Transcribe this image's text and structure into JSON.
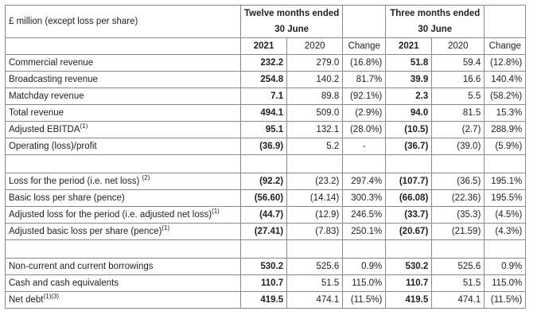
{
  "header": {
    "title": "£ million (except loss per share)",
    "group12": "Twelve months ended",
    "group12_sub": "30 June",
    "group3": "Three months ended",
    "group3_sub": "30 June",
    "cols": [
      "2021",
      "2020",
      "Change",
      "2021",
      "2020",
      "Change"
    ]
  },
  "sections": [
    {
      "rows": [
        {
          "label": "Commercial revenue",
          "sup": "",
          "v": [
            "232.2",
            "279.0",
            "(16.8%)",
            "51.8",
            "59.4",
            "(12.8%)"
          ]
        },
        {
          "label": "Broadcasting revenue",
          "sup": "",
          "v": [
            "254.8",
            "140.2",
            "81.7%",
            "39.9",
            "16.6",
            "140.4%"
          ]
        },
        {
          "label": "Matchday revenue",
          "sup": "",
          "v": [
            "7.1",
            "89.8",
            "(92.1%)",
            "2.3",
            "5.5",
            "(58.2%)"
          ]
        },
        {
          "label": "Total revenue",
          "sup": "",
          "v": [
            "494.1",
            "509.0",
            "(2.9%)",
            "94.0",
            "81.5",
            "15.3%"
          ]
        },
        {
          "label": "Adjusted EBITDA",
          "sup": "(1)",
          "v": [
            "95.1",
            "132.1",
            "(28.0%)",
            "(10.5)",
            "(2.7)",
            "288.9%"
          ]
        },
        {
          "label": "Operating (loss)/profit",
          "sup": "",
          "v": [
            "(36.9)",
            "5.2",
            "-",
            "(36.7)",
            "(39.0)",
            "(5.9%)"
          ]
        }
      ]
    },
    {
      "rows": [
        {
          "label": "Loss for the period (i.e. net loss) ",
          "sup": "(2)",
          "v": [
            "(92.2)",
            "(23.2)",
            "297.4%",
            "(107.7)",
            "(36.5)",
            "195.1%"
          ]
        },
        {
          "label": "Basic loss per share (pence)",
          "sup": "",
          "v": [
            "(56.60)",
            "(14.14)",
            "300.3%",
            "(66.08)",
            "(22.36)",
            "195.5%"
          ]
        },
        {
          "label": "Adjusted loss for the period (i.e. adjusted net loss)",
          "sup": "(1)",
          "v": [
            "(44.7)",
            "(12.9)",
            "246.5%",
            "(33.7)",
            "(35.3)",
            "(4.5%)"
          ]
        },
        {
          "label": "Adjusted basic loss per share (pence)",
          "sup": "(1)",
          "v": [
            "(27.41)",
            "(7.83)",
            "250.1%",
            "(20.67)",
            "(21.59)",
            "(4.3%)"
          ]
        }
      ]
    },
    {
      "rows": [
        {
          "label": "Non-current and current borrowings",
          "sup": "",
          "v": [
            "530.2",
            "525.6",
            "0.9%",
            "530.2",
            "525.6",
            "0.9%"
          ]
        },
        {
          "label": "Cash and cash equivalents",
          "sup": "",
          "v": [
            "110.7",
            "51.5",
            "115.0%",
            "110.7",
            "51.5",
            "115.0%"
          ]
        },
        {
          "label": "Net debt",
          "sup": "(1)(3)",
          "v": [
            "419.5",
            "474.1",
            "(11.5%)",
            "419.5",
            "474.1",
            "(11.5%)"
          ]
        }
      ]
    }
  ]
}
